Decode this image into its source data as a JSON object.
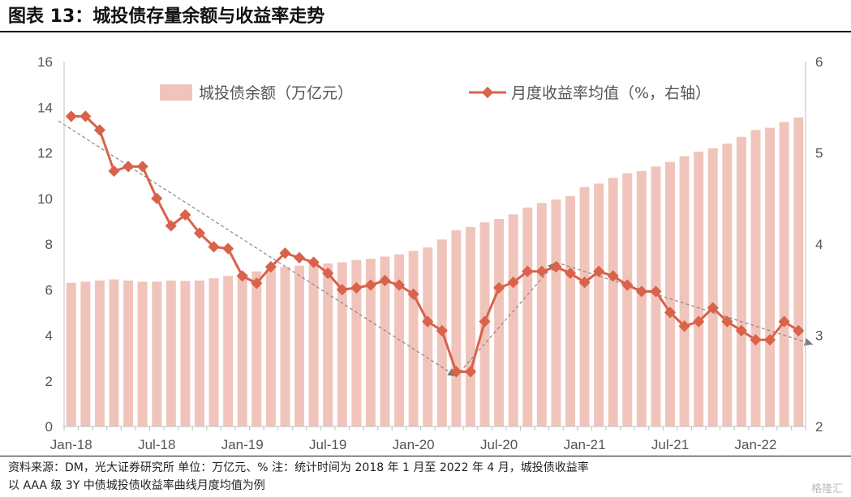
{
  "header": {
    "title": "图表 13：城投债存量余额与收益率走势"
  },
  "footer": {
    "line1": "资料来源：DM，光大证券研究所    单位：万亿元、%      注：统计时间为 2018 年 1 月至 2022 年 4 月，城投债收益率",
    "line2": "以 AAA 级 3Y 中债城投债收益率曲线月度均值为例",
    "watermark": "格隆汇"
  },
  "colors": {
    "bar": "#f0c4bb",
    "line": "#d9624a",
    "trend": "#888888",
    "axis": "#bfbfbf"
  },
  "chart_data": {
    "type": "bar+line",
    "x_ticks": [
      "Jan-18",
      "Jul-18",
      "Jan-19",
      "Jul-19",
      "Jan-20",
      "Jul-20",
      "Jan-21",
      "Jul-21",
      "Jan-22"
    ],
    "categories": [
      "2018-01",
      "2018-02",
      "2018-03",
      "2018-04",
      "2018-05",
      "2018-06",
      "2018-07",
      "2018-08",
      "2018-09",
      "2018-10",
      "2018-11",
      "2018-12",
      "2019-01",
      "2019-02",
      "2019-03",
      "2019-04",
      "2019-05",
      "2019-06",
      "2019-07",
      "2019-08",
      "2019-09",
      "2019-10",
      "2019-11",
      "2019-12",
      "2020-01",
      "2020-02",
      "2020-03",
      "2020-04",
      "2020-05",
      "2020-06",
      "2020-07",
      "2020-08",
      "2020-09",
      "2020-10",
      "2020-11",
      "2020-12",
      "2021-01",
      "2021-02",
      "2021-03",
      "2021-04",
      "2021-05",
      "2021-06",
      "2021-07",
      "2021-08",
      "2021-09",
      "2021-10",
      "2021-11",
      "2021-12",
      "2022-01",
      "2022-02",
      "2022-03",
      "2022-04"
    ],
    "series": [
      {
        "name": "城投债余额（万亿元）",
        "type": "bar",
        "axis": "left",
        "values": [
          6.3,
          6.35,
          6.4,
          6.45,
          6.4,
          6.35,
          6.35,
          6.4,
          6.38,
          6.4,
          6.5,
          6.6,
          6.7,
          6.8,
          6.9,
          7.0,
          7.05,
          7.1,
          7.15,
          7.2,
          7.3,
          7.35,
          7.45,
          7.55,
          7.7,
          7.85,
          8.2,
          8.6,
          8.75,
          8.95,
          9.1,
          9.3,
          9.6,
          9.8,
          9.95,
          10.1,
          10.5,
          10.65,
          10.9,
          11.1,
          11.2,
          11.4,
          11.6,
          11.85,
          12.05,
          12.2,
          12.4,
          12.7,
          13.0,
          13.1,
          13.35,
          13.55
        ]
      },
      {
        "name": "月度收益率均值（%，右轴）",
        "type": "line",
        "axis": "right",
        "values": [
          5.4,
          5.4,
          5.25,
          4.8,
          4.85,
          4.85,
          4.5,
          4.2,
          4.32,
          4.12,
          3.97,
          3.95,
          3.65,
          3.57,
          3.75,
          3.9,
          3.85,
          3.8,
          3.68,
          3.5,
          3.52,
          3.55,
          3.6,
          3.55,
          3.45,
          3.15,
          3.05,
          2.6,
          2.6,
          3.15,
          3.52,
          3.58,
          3.7,
          3.7,
          3.75,
          3.68,
          3.58,
          3.7,
          3.65,
          3.55,
          3.48,
          3.48,
          3.25,
          3.1,
          3.15,
          3.3,
          3.15,
          3.05,
          2.95,
          2.95,
          3.15,
          3.05
        ]
      }
    ],
    "y_left": {
      "range": [
        0,
        16
      ],
      "ticks": [
        "0",
        "2",
        "4",
        "6",
        "8",
        "10",
        "12",
        "14",
        "16"
      ]
    },
    "y_right": {
      "range": [
        2,
        6
      ],
      "ticks": [
        "2",
        "3",
        "4",
        "5",
        "6"
      ]
    },
    "trend_lines": [
      {
        "values": [
          5.35,
          2.55,
          3.8,
          2.9
        ],
        "at": [
          "2018-01",
          "2020-04",
          "2020-11",
          "2022-05"
        ]
      }
    ],
    "legend_position": "top"
  }
}
